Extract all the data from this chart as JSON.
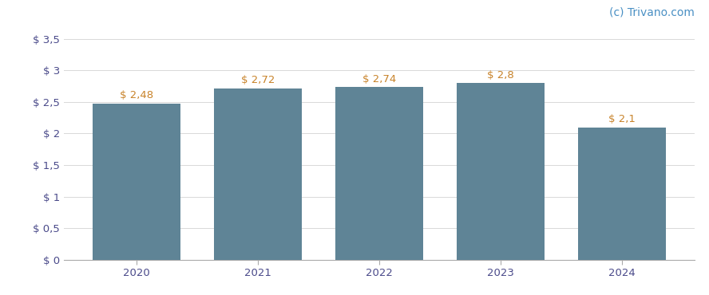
{
  "categories": [
    "2020",
    "2021",
    "2022",
    "2023",
    "2024"
  ],
  "values": [
    2.48,
    2.72,
    2.74,
    2.8,
    2.1
  ],
  "bar_color": "#5f8496",
  "label_color": "#c8832a",
  "label_format": [
    "$ 2,48",
    "$ 2,72",
    "$ 2,74",
    "$ 2,8",
    "$ 2,1"
  ],
  "yticks": [
    0,
    0.5,
    1.0,
    1.5,
    2.0,
    2.5,
    3.0,
    3.5
  ],
  "ytick_labels": [
    "$ 0",
    "$ 0,5",
    "$ 1",
    "$ 1,5",
    "$ 2",
    "$ 2,5",
    "$ 3",
    "$ 3,5"
  ],
  "ylim": [
    0,
    3.65
  ],
  "background_color": "#ffffff",
  "grid_color": "#d8d8d8",
  "watermark": "(c) Trivano.com",
  "watermark_color": "#4a90c4",
  "axis_label_color": "#4a4a8a",
  "label_fontsize": 9.5,
  "tick_fontsize": 9.5,
  "watermark_fontsize": 10,
  "bar_width": 0.72
}
